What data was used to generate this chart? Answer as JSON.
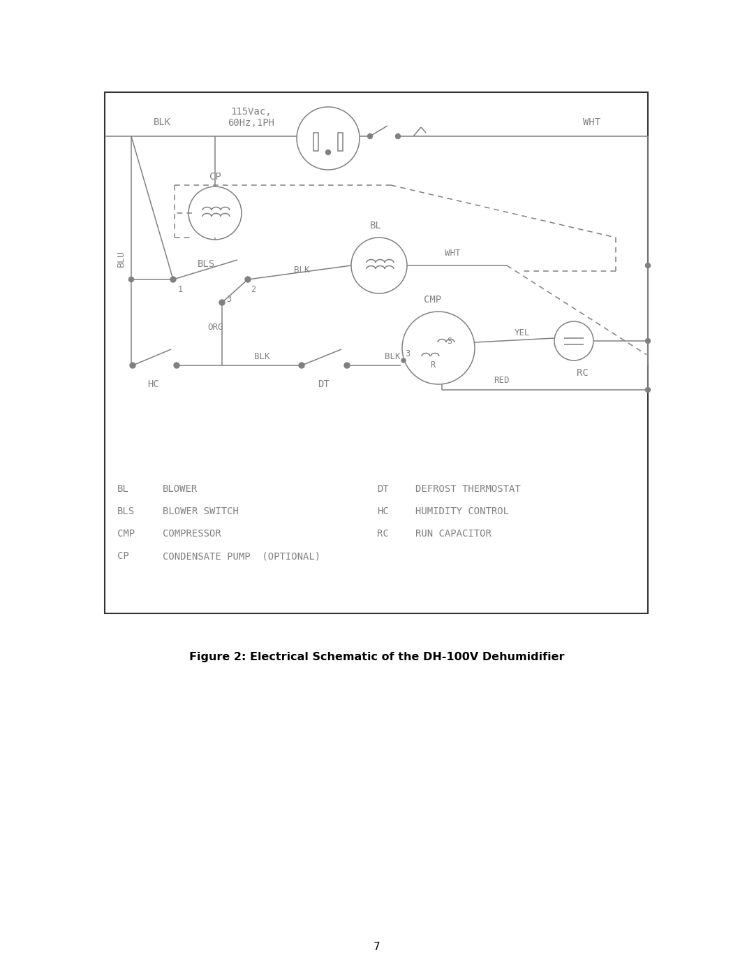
{
  "title": "Figure 2: Electrical Schematic of the DH-100V Dehumidifier",
  "page_number": "7",
  "background_color": "#ffffff",
  "line_color": "#808080",
  "text_color": "#808080",
  "border_color": "#333333",
  "legend_items_left": [
    [
      "BL",
      "BLOWER"
    ],
    [
      "BLS",
      "BLOWER SWITCH"
    ],
    [
      "CMP",
      "COMPRESSOR"
    ],
    [
      "CP",
      "CONDENSATE PUMP  (OPTIONAL)"
    ]
  ],
  "legend_items_right": [
    [
      "DT",
      "DEFROST THERMOSTAT"
    ],
    [
      "HC",
      "HUMIDITY CONTROL"
    ],
    [
      "RC",
      "RUN CAPACITOR"
    ]
  ]
}
